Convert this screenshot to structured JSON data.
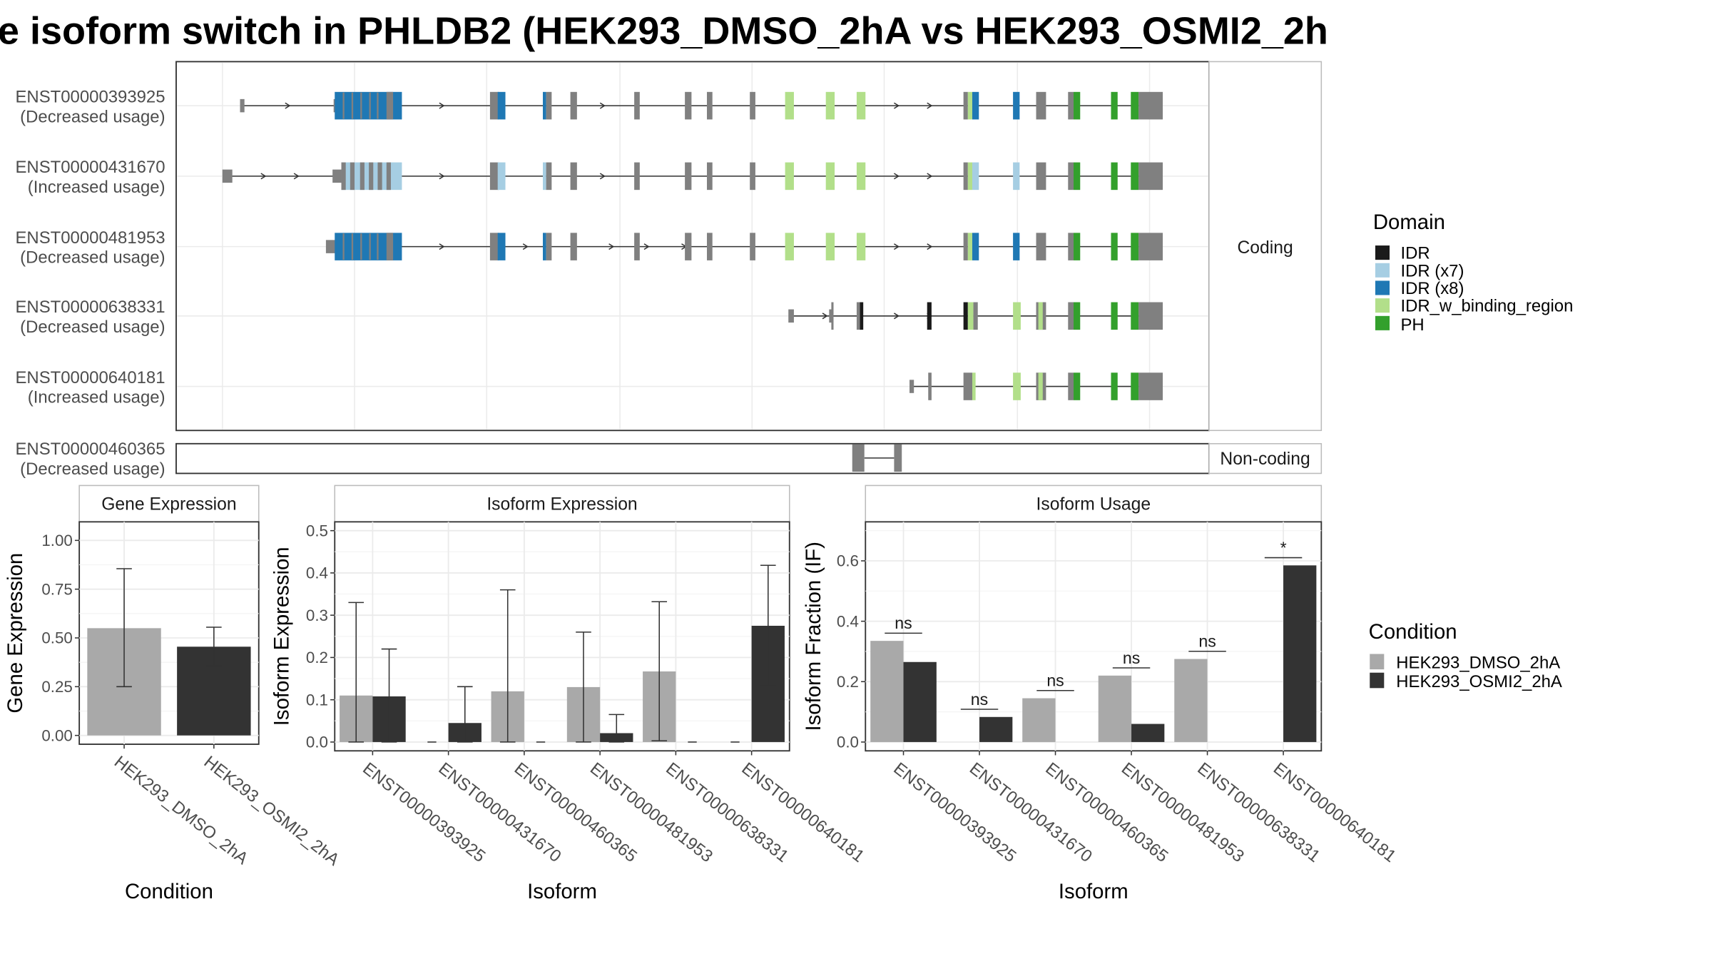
{
  "title": "e isoform switch in PHLDB2 (HEK293_DMSO_2hA vs HEK293_OSMI2_2h",
  "colors": {
    "IDR": "#1a1a1a",
    "IDR (x7)": "#a6cee3",
    "IDR (x8)": "#1f78b4",
    "IDR_w_binding_region": "#b2df8a",
    "PH": "#33a02c",
    "none": "#808080",
    "dmso": "#a9a9a9",
    "osmi": "#333333"
  },
  "structure": {
    "coding_strip": "Coding",
    "noncoding_strip": "Non-coding",
    "transcripts": [
      {
        "id": "ENST00000393925",
        "usage": "(Decreased usage)"
      },
      {
        "id": "ENST00000431670",
        "usage": "(Increased usage)"
      },
      {
        "id": "ENST00000481953",
        "usage": "(Decreased usage)"
      },
      {
        "id": "ENST00000638331",
        "usage": "(Decreased usage)"
      },
      {
        "id": "ENST00000640181",
        "usage": "(Increased usage)"
      },
      {
        "id": "ENST00000460365",
        "usage": "(Decreased usage)"
      }
    ]
  },
  "legend_domain": {
    "title": "Domain",
    "items": [
      "IDR",
      "IDR (x7)",
      "IDR (x8)",
      "IDR_w_binding_region",
      "PH"
    ]
  },
  "legend_condition": {
    "title": "Condition",
    "items": [
      "HEK293_DMSO_2hA",
      "HEK293_OSMI2_2hA"
    ]
  },
  "chart_data": [
    {
      "type": "bar",
      "title": "Gene Expression",
      "xlabel": "Condition",
      "ylabel": "Gene Expression",
      "ylim": [
        0,
        1.05
      ],
      "yticks": [
        "0.00",
        "0.25",
        "0.50",
        "0.75",
        "1.00"
      ],
      "categories": [
        "HEK293_DMSO_2hA",
        "HEK293_OSMI2_2hA"
      ],
      "values": [
        0.55,
        0.455
      ],
      "error_low": [
        0.25,
        0.355
      ],
      "error_high": [
        0.855,
        0.555
      ]
    },
    {
      "type": "bar",
      "title": "Isoform Expression",
      "xlabel": "Isoform",
      "ylabel": "Isoform Expression",
      "ylim": [
        0,
        0.5
      ],
      "yticks": [
        "0.0",
        "0.1",
        "0.2",
        "0.3",
        "0.4",
        "0.5"
      ],
      "categories": [
        "ENST00000393925",
        "ENST00000431670",
        "ENST00000460365",
        "ENST00000481953",
        "ENST00000638331",
        "ENST00000640181"
      ],
      "series": [
        {
          "name": "HEK293_DMSO_2hA",
          "values": [
            0.11,
            0.0,
            0.12,
            0.13,
            0.167,
            0.0
          ],
          "error_low": [
            0.0,
            0.0,
            0.0,
            0.0,
            0.003,
            0.0
          ],
          "error_high": [
            0.33,
            0.0,
            0.36,
            0.26,
            0.332,
            0.0
          ]
        },
        {
          "name": "HEK293_OSMI2_2hA",
          "values": [
            0.108,
            0.045,
            0.0,
            0.021,
            0.0,
            0.275
          ],
          "error_low": [
            0.0,
            0.0,
            0.0,
            0.0,
            0.0,
            0.133
          ],
          "error_high": [
            0.22,
            0.131,
            0.0,
            0.065,
            0.0,
            0.418
          ]
        }
      ]
    },
    {
      "type": "bar",
      "title": "Isoform Usage",
      "xlabel": "Isoform",
      "ylabel": "Isoform Fraction (IF)",
      "ylim": [
        0,
        0.7
      ],
      "yticks": [
        "0.0",
        "0.2",
        "0.4",
        "0.6"
      ],
      "categories": [
        "ENST00000393925",
        "ENST00000431670",
        "ENST00000460365",
        "ENST00000481953",
        "ENST00000638331",
        "ENST00000640181"
      ],
      "series": [
        {
          "name": "HEK293_DMSO_2hA",
          "values": [
            0.335,
            0.0,
            0.145,
            0.22,
            0.275,
            0.0
          ]
        },
        {
          "name": "HEK293_OSMI2_2hA",
          "values": [
            0.265,
            0.083,
            0.0,
            0.06,
            0.0,
            0.585
          ]
        }
      ],
      "significance": [
        "ns",
        "ns",
        "ns",
        "ns",
        "ns",
        "*"
      ]
    }
  ]
}
